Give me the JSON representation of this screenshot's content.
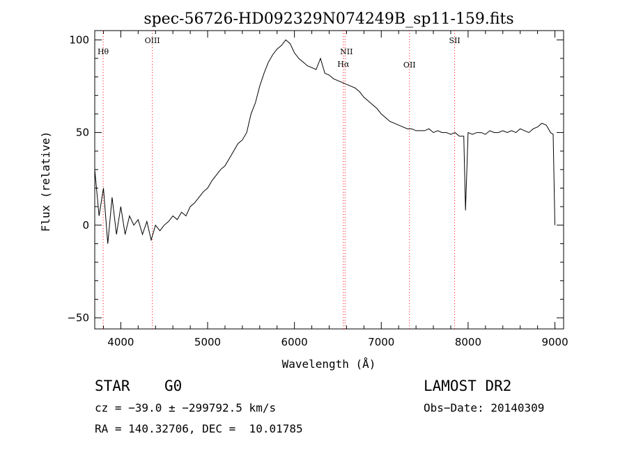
{
  "chart_data": {
    "type": "line",
    "title": "spec-56726-HD092329N074249B_sp11-159.fits",
    "xlabel": "Wavelength (Å)",
    "ylabel": "Flux (relative)",
    "xlim": [
      3700,
      9100
    ],
    "ylim": [
      -56,
      105
    ],
    "xticks": [
      4000,
      5000,
      6000,
      7000,
      8000,
      9000
    ],
    "yticks": [
      -50,
      0,
      50,
      100
    ],
    "grid": false,
    "series_color": "#000000",
    "line_marker_color": "#ff0000",
    "lines": [
      {
        "name": "Hθ",
        "wavelength": 3797
      },
      {
        "name": "OIII",
        "wavelength": 4363
      },
      {
        "name": "NII",
        "wavelength": 6583
      },
      {
        "name": "Hα",
        "wavelength": 6563
      },
      {
        "name": "OII",
        "wavelength": 7325
      },
      {
        "name": "SII",
        "wavelength": 7845
      }
    ],
    "series": [
      {
        "x": [
          3700,
          3750,
          3800,
          3850,
          3900,
          3950,
          4000,
          4050,
          4100,
          4150,
          4200,
          4250,
          4300,
          4350,
          4400,
          4450,
          4500,
          4550,
          4600,
          4650,
          4700,
          4750,
          4800,
          4850,
          4900,
          4950,
          5000,
          5050,
          5100,
          5150,
          5200,
          5250,
          5300,
          5350,
          5400,
          5450,
          5500,
          5550,
          5600,
          5650,
          5700,
          5750,
          5800,
          5850,
          5900,
          5950,
          6000,
          6050,
          6100,
          6150,
          6200,
          6250,
          6300,
          6350,
          6400,
          6450,
          6500,
          6550,
          6600,
          6650,
          6700,
          6750,
          6800,
          6850,
          6900,
          6950,
          7000,
          7050,
          7100,
          7150,
          7200,
          7250,
          7300,
          7350,
          7400,
          7450,
          7500,
          7550,
          7600,
          7650,
          7700,
          7750,
          7800,
          7850,
          7900,
          7950,
          7970,
          8000,
          8050,
          8100,
          8150,
          8200,
          8250,
          8300,
          8350,
          8400,
          8450,
          8500,
          8550,
          8600,
          8650,
          8700,
          8750,
          8800,
          8850,
          8900,
          8950,
          8980,
          9000
        ],
        "y": [
          30,
          5,
          20,
          -10,
          15,
          -5,
          10,
          -5,
          5,
          0,
          3,
          -5,
          2,
          -8,
          0,
          -3,
          0,
          2,
          5,
          3,
          7,
          5,
          10,
          12,
          15,
          18,
          20,
          24,
          27,
          30,
          32,
          36,
          40,
          44,
          46,
          50,
          60,
          66,
          75,
          82,
          88,
          92,
          95,
          97,
          100,
          98,
          93,
          90,
          88,
          86,
          85,
          84,
          90,
          82,
          81,
          79,
          78,
          77,
          76,
          75,
          74,
          72,
          69,
          67,
          65,
          63,
          60,
          58,
          56,
          55,
          54,
          53,
          52,
          52,
          51,
          51,
          51,
          52,
          50,
          51,
          50,
          50,
          49,
          50,
          48,
          48,
          8,
          50,
          49,
          50,
          50,
          49,
          51,
          50,
          50,
          51,
          50,
          51,
          50,
          52,
          51,
          50,
          52,
          53,
          55,
          54,
          50,
          49,
          0
        ]
      }
    ]
  },
  "info": {
    "object_type": "STAR",
    "subclass": "G0",
    "survey": "LAMOST DR2",
    "cz": "cz = −39.0 ± −299792.5 km/s",
    "obs_date": "Obs−Date: 20140309",
    "coords": "RA = 140.32706, DEC =  10.01785"
  }
}
